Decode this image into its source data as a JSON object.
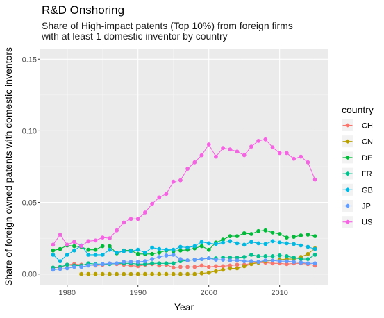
{
  "chart_data": {
    "type": "line",
    "title": "R&D Onshoring",
    "subtitle_lines": [
      "Share of High-impact patents (Top 10%) from foreign firms",
      "with at least 1 domestic inventor by country"
    ],
    "xlabel": "Year",
    "ylabel": "Share of foreign owned patents with domestic inventors",
    "xlim": [
      1976.2,
      2016.8
    ],
    "ylim": [
      -0.0074,
      0.1574
    ],
    "x_ticks": [
      1980,
      1990,
      2000,
      2010
    ],
    "y_ticks": [
      0.0,
      0.05,
      0.1,
      0.15
    ],
    "y_tick_labels": [
      "0.00",
      "0.05",
      "0.10",
      "0.15"
    ],
    "grid": true,
    "legend_title": "country",
    "legend_position": "right",
    "series": [
      {
        "name": "CH",
        "color": "#F8766D",
        "x": [
          1978,
          1979,
          1980,
          1981,
          1982,
          1983,
          1984,
          1985,
          1986,
          1987,
          1988,
          1989,
          1990,
          1991,
          1992,
          1993,
          1994,
          1995,
          1996,
          1997,
          1998,
          1999,
          2000,
          2001,
          2002,
          2003,
          2004,
          2005,
          2006,
          2007,
          2008,
          2009,
          2010,
          2011,
          2012,
          2013,
          2014,
          2015
        ],
        "values": [
          0.0045,
          0.0045,
          0.0065,
          0.007,
          0.0065,
          0.0065,
          0.006,
          0.0065,
          0.0075,
          0.007,
          0.0065,
          0.006,
          0.0055,
          0.0065,
          0.007,
          0.006,
          0.0065,
          0.0045,
          0.005,
          0.005,
          0.005,
          0.006,
          0.005,
          0.0055,
          0.0055,
          0.006,
          0.0065,
          0.0065,
          0.0075,
          0.008,
          0.008,
          0.0075,
          0.0075,
          0.007,
          0.0075,
          0.0075,
          0.007,
          0.006
        ]
      },
      {
        "name": "CN",
        "color": "#B79F00",
        "x": [
          1982,
          1983,
          1984,
          1985,
          1986,
          1987,
          1988,
          1989,
          1990,
          1991,
          1992,
          1993,
          1994,
          1995,
          1996,
          1997,
          1998,
          1999,
          2000,
          2001,
          2002,
          2003,
          2004,
          2005,
          2006,
          2007,
          2008,
          2009,
          2010,
          2011,
          2012,
          2013,
          2014,
          2015
        ],
        "values": [
          0.0,
          0.0,
          0.0,
          0.0,
          0.0,
          0.0,
          0.0,
          0.0,
          0.0,
          0.0,
          0.0,
          0.0,
          0.0,
          0.0,
          0.0,
          0.0,
          0.0,
          0.0005,
          0.001,
          0.002,
          0.003,
          0.004,
          0.004,
          0.0055,
          0.007,
          0.008,
          0.009,
          0.0095,
          0.01,
          0.0105,
          0.0105,
          0.012,
          0.014,
          0.018
        ]
      },
      {
        "name": "DE",
        "color": "#00BA38",
        "x": [
          1978,
          1979,
          1980,
          1981,
          1982,
          1983,
          1984,
          1985,
          1986,
          1987,
          1988,
          1989,
          1990,
          1991,
          1992,
          1993,
          1994,
          1995,
          1996,
          1997,
          1998,
          1999,
          2000,
          2001,
          2002,
          2003,
          2004,
          2005,
          2006,
          2007,
          2008,
          2009,
          2010,
          2011,
          2012,
          2013,
          2014,
          2015
        ],
        "values": [
          0.0165,
          0.0175,
          0.02,
          0.0195,
          0.019,
          0.017,
          0.017,
          0.0195,
          0.0195,
          0.0145,
          0.0165,
          0.0165,
          0.014,
          0.014,
          0.014,
          0.015,
          0.0165,
          0.016,
          0.0165,
          0.017,
          0.018,
          0.0195,
          0.017,
          0.022,
          0.024,
          0.0265,
          0.0265,
          0.0285,
          0.028,
          0.03,
          0.0305,
          0.029,
          0.028,
          0.0255,
          0.026,
          0.027,
          0.0275,
          0.0265
        ]
      },
      {
        "name": "FR",
        "color": "#00C08B",
        "x": [
          1978,
          1979,
          1980,
          1981,
          1982,
          1983,
          1984,
          1985,
          1986,
          1987,
          1988,
          1989,
          1990,
          1991,
          1992,
          1993,
          1994,
          1995,
          1996,
          1997,
          1998,
          1999,
          2000,
          2001,
          2002,
          2003,
          2004,
          2005,
          2006,
          2007,
          2008,
          2009,
          2010,
          2011,
          2012,
          2013,
          2014,
          2015
        ],
        "values": [
          0.0045,
          0.005,
          0.0065,
          0.006,
          0.006,
          0.0075,
          0.007,
          0.007,
          0.007,
          0.0075,
          0.0075,
          0.0075,
          0.007,
          0.007,
          0.0075,
          0.0075,
          0.0075,
          0.0075,
          0.009,
          0.0095,
          0.01,
          0.0105,
          0.011,
          0.011,
          0.0115,
          0.0115,
          0.0115,
          0.012,
          0.0135,
          0.0125,
          0.0125,
          0.0125,
          0.013,
          0.0125,
          0.0115,
          0.0105,
          0.0105,
          0.0135
        ]
      },
      {
        "name": "GB",
        "color": "#00B9E3",
        "x": [
          1978,
          1979,
          1980,
          1981,
          1982,
          1983,
          1984,
          1985,
          1986,
          1987,
          1988,
          1989,
          1990,
          1991,
          1992,
          1993,
          1994,
          1995,
          1996,
          1997,
          1998,
          1999,
          2000,
          2001,
          2002,
          2003,
          2004,
          2005,
          2006,
          2007,
          2008,
          2009,
          2010,
          2011,
          2012,
          2013,
          2014,
          2015
        ],
        "values": [
          0.0135,
          0.009,
          0.0135,
          0.0165,
          0.02,
          0.0135,
          0.0135,
          0.0135,
          0.017,
          0.015,
          0.016,
          0.016,
          0.017,
          0.015,
          0.0185,
          0.0175,
          0.017,
          0.017,
          0.019,
          0.0185,
          0.0195,
          0.0225,
          0.0215,
          0.021,
          0.022,
          0.023,
          0.0215,
          0.0205,
          0.0225,
          0.0215,
          0.021,
          0.023,
          0.022,
          0.0215,
          0.021,
          0.02,
          0.019,
          0.0175
        ]
      },
      {
        "name": "JP",
        "color": "#619CFF",
        "x": [
          1978,
          1979,
          1980,
          1981,
          1982,
          1983,
          1984,
          1985,
          1986,
          1987,
          1988,
          1989,
          1990,
          1991,
          1992,
          1993,
          1994,
          1995,
          1996,
          1997,
          1998,
          1999,
          2000,
          2001,
          2002,
          2003,
          2004,
          2005,
          2006,
          2007,
          2008,
          2009,
          2010,
          2011,
          2012,
          2013,
          2014,
          2015
        ],
        "values": [
          0.003,
          0.0035,
          0.004,
          0.005,
          0.005,
          0.006,
          0.0065,
          0.007,
          0.0075,
          0.0075,
          0.0085,
          0.0085,
          0.0085,
          0.009,
          0.0105,
          0.012,
          0.013,
          0.0135,
          0.0105,
          0.0095,
          0.01,
          0.0105,
          0.011,
          0.01,
          0.01,
          0.0095,
          0.0095,
          0.009,
          0.009,
          0.0085,
          0.0095,
          0.0095,
          0.009,
          0.009,
          0.0085,
          0.008,
          0.0075,
          0.0075
        ]
      },
      {
        "name": "US",
        "color": "#F564E3",
        "x": [
          1978,
          1979,
          1980,
          1981,
          1982,
          1983,
          1984,
          1985,
          1986,
          1987,
          1988,
          1989,
          1990,
          1991,
          1992,
          1993,
          1994,
          1995,
          1996,
          1997,
          1998,
          1999,
          2000,
          2001,
          2002,
          2003,
          2004,
          2005,
          2006,
          2007,
          2008,
          2009,
          2010,
          2011,
          2012,
          2013,
          2014,
          2015
        ],
        "values": [
          0.0205,
          0.0275,
          0.0205,
          0.0225,
          0.0195,
          0.023,
          0.0235,
          0.0255,
          0.025,
          0.0305,
          0.036,
          0.0385,
          0.0385,
          0.043,
          0.049,
          0.0535,
          0.056,
          0.0645,
          0.0655,
          0.0735,
          0.078,
          0.083,
          0.0905,
          0.082,
          0.088,
          0.087,
          0.0855,
          0.083,
          0.089,
          0.093,
          0.094,
          0.0885,
          0.0845,
          0.0845,
          0.0805,
          0.082,
          0.078,
          0.066
        ]
      }
    ]
  }
}
